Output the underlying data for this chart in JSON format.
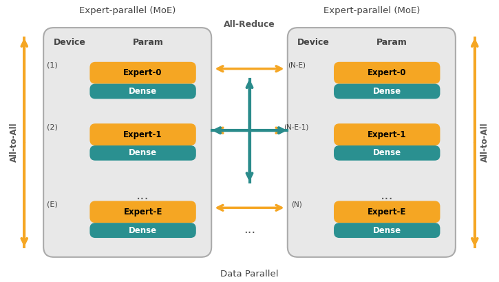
{
  "title_left": "Expert-parallel (MoE)",
  "title_right": "Expert-parallel (MoE)",
  "label_bottom": "Data Parallel",
  "label_allreduce": "All-Reduce",
  "label_alltoall_left": "All-to-All",
  "label_alltoall_right": "All-to-All",
  "header_device": "Device",
  "header_param": "Param",
  "orange_color": "#F5A623",
  "teal_color": "#2A9090",
  "arrow_orange": "#F5A623",
  "arrow_teal": "#2A8B8B",
  "box_bg": "#E8E8E8",
  "left_groups": [
    {
      "device": "(1)",
      "expert": "Expert-0",
      "dense": "Dense"
    },
    {
      "device": "(2)",
      "expert": "Expert-1",
      "dense": "Dense"
    },
    {
      "device": "(E)",
      "expert": "Expert-E",
      "dense": "Dense"
    }
  ],
  "right_groups": [
    {
      "device": "(N-E)",
      "expert": "Expert-0",
      "dense": "Dense"
    },
    {
      "device": "(N-E-1)",
      "expert": "Expert-1",
      "dense": "Dense"
    },
    {
      "device": "(N)",
      "expert": "Expert-E",
      "dense": "Dense"
    }
  ]
}
